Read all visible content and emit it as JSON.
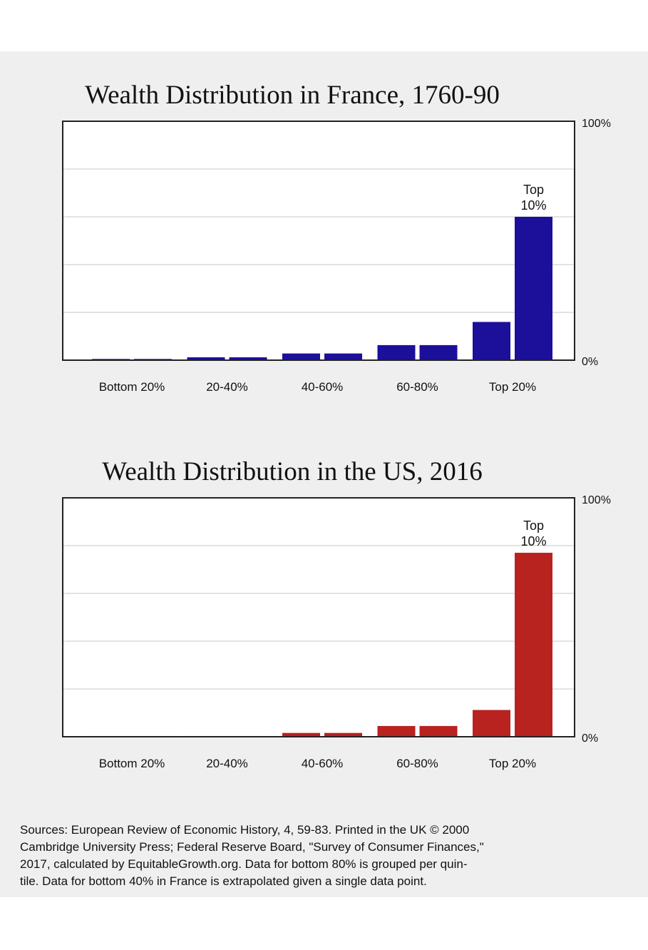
{
  "chart_data": [
    {
      "type": "bar",
      "title": "Wealth Distribution in France, 1760-90",
      "color": "#1c0f9a",
      "categories": [
        "Bottom 20%",
        "20-40%",
        "40-60%",
        "60-80%",
        "Top 20%"
      ],
      "bars": [
        {
          "group": "Bottom 20%",
          "value": 0.5
        },
        {
          "group": "Bottom 20%",
          "value": 0.5
        },
        {
          "group": "20-40%",
          "value": 1.2
        },
        {
          "group": "20-40%",
          "value": 1.2
        },
        {
          "group": "40-60%",
          "value": 2.8
        },
        {
          "group": "40-60%",
          "value": 2.8
        },
        {
          "group": "60-80%",
          "value": 6.3
        },
        {
          "group": "60-80%",
          "value": 6.3
        },
        {
          "group": "Top 20%",
          "value": 16
        },
        {
          "group": "Top 20%",
          "value": 60,
          "label": "Top 10%"
        }
      ],
      "ylim": [
        0,
        100
      ],
      "ytick_labels": {
        "top": "100%",
        "bottom": "0%"
      },
      "gridlines": [
        20,
        40,
        60,
        80
      ],
      "annotation": [
        "Top",
        "10%"
      ]
    },
    {
      "type": "bar",
      "title": "Wealth Distribution in the US, 2016",
      "color": "#b8221f",
      "categories": [
        "Bottom 20%",
        "20-40%",
        "40-60%",
        "60-80%",
        "Top 20%"
      ],
      "bars": [
        {
          "group": "Bottom 20%",
          "value": 0.3
        },
        {
          "group": "Bottom 20%",
          "value": 0.3
        },
        {
          "group": "20-40%",
          "value": 0.3
        },
        {
          "group": "20-40%",
          "value": 0.3
        },
        {
          "group": "40-60%",
          "value": 1.6
        },
        {
          "group": "40-60%",
          "value": 1.6
        },
        {
          "group": "60-80%",
          "value": 4.5
        },
        {
          "group": "60-80%",
          "value": 4.5
        },
        {
          "group": "Top 20%",
          "value": 11.2
        },
        {
          "group": "Top 20%",
          "value": 77,
          "label": "Top 10%"
        }
      ],
      "ylim": [
        0,
        100
      ],
      "ytick_labels": {
        "top": "100%",
        "bottom": "0%"
      },
      "gridlines": [
        20,
        40,
        60,
        80
      ],
      "annotation": [
        "Top",
        "10%"
      ]
    }
  ],
  "sources": {
    "lines": [
      "Sources: European Review of Economic History, 4, 59-83. Printed in the UK © 2000",
      "Cambridge University Press; Federal Reserve Board, \"Survey of Consumer Finances,\"",
      "2017, calculated by EquitableGrowth.org. Data for bottom 80% is grouped per quin-",
      "tile. Data for bottom 40% in France is extrapolated given a single data point."
    ]
  }
}
